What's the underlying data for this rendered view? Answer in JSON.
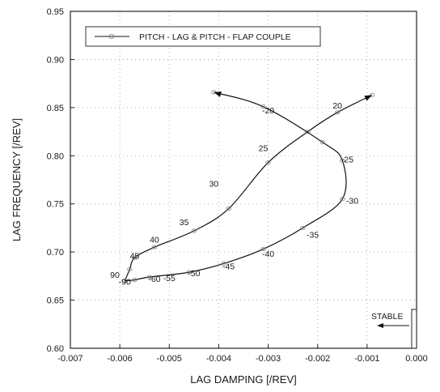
{
  "chart_data": {
    "type": "line",
    "xlabel": "LAG DAMPING [/REV]",
    "ylabel": "LAG FREQUENCY [/REV]",
    "xlim": [
      -0.007,
      0.0
    ],
    "ylim": [
      0.6,
      0.95
    ],
    "x_ticks": [
      "-0.007",
      "-0.006",
      "-0.005",
      "-0.004",
      "-0.003",
      "-0.002",
      "-0.001",
      "0.000"
    ],
    "y_ticks": [
      "0.60",
      "0.65",
      "0.70",
      "0.75",
      "0.80",
      "0.85",
      "0.90",
      "0.95"
    ],
    "grid": "dotted",
    "legend_position": "top-left",
    "series": [
      {
        "name": "PITCH - LAG  &  PITCH - FLAP COUPLE",
        "color": "#111111",
        "upper_branch": [
          {
            "x": -0.0059,
            "y": 0.67
          },
          {
            "x": -0.0058,
            "y": 0.682
          },
          {
            "x": -0.0057,
            "y": 0.694
          },
          {
            "x": -0.0053,
            "y": 0.705
          },
          {
            "x": -0.0045,
            "y": 0.722
          },
          {
            "x": -0.0038,
            "y": 0.745
          },
          {
            "x": -0.003,
            "y": 0.793
          },
          {
            "x": -0.0022,
            "y": 0.825
          },
          {
            "x": -0.0016,
            "y": 0.845
          },
          {
            "x": -0.0009,
            "y": 0.863
          }
        ],
        "lower_branch": [
          {
            "x": -0.0059,
            "y": 0.67
          },
          {
            "x": -0.0057,
            "y": 0.671
          },
          {
            "x": -0.0054,
            "y": 0.674
          },
          {
            "x": -0.0046,
            "y": 0.679
          },
          {
            "x": -0.0039,
            "y": 0.688
          },
          {
            "x": -0.0031,
            "y": 0.703
          },
          {
            "x": -0.0023,
            "y": 0.725
          },
          {
            "x": -0.0015,
            "y": 0.755
          },
          {
            "x": -0.0015,
            "y": 0.795
          },
          {
            "x": -0.0019,
            "y": 0.814
          },
          {
            "x": -0.0031,
            "y": 0.851
          },
          {
            "x": -0.0041,
            "y": 0.866
          }
        ]
      }
    ],
    "annotations": [
      {
        "text": "20",
        "x": -0.0016,
        "y": 0.849
      },
      {
        "text": "25",
        "x": -0.0031,
        "y": 0.805
      },
      {
        "text": "30",
        "x": -0.0041,
        "y": 0.768
      },
      {
        "text": "35",
        "x": -0.0047,
        "y": 0.728
      },
      {
        "text": "40",
        "x": -0.0053,
        "y": 0.71
      },
      {
        "text": "45",
        "x": -0.0057,
        "y": 0.693
      },
      {
        "text": "90",
        "x": -0.0061,
        "y": 0.673
      },
      {
        "text": "-20",
        "x": -0.003,
        "y": 0.844
      },
      {
        "text": "-25",
        "x": -0.0014,
        "y": 0.793
      },
      {
        "text": "-30",
        "x": -0.0013,
        "y": 0.75
      },
      {
        "text": "-35",
        "x": -0.0021,
        "y": 0.715
      },
      {
        "text": "-40",
        "x": -0.003,
        "y": 0.695
      },
      {
        "text": "-45",
        "x": -0.0038,
        "y": 0.682
      },
      {
        "text": "-50",
        "x": -0.0045,
        "y": 0.675
      },
      {
        "text": "-55",
        "x": -0.005,
        "y": 0.67
      },
      {
        "text": "-60",
        "x": -0.0053,
        "y": 0.669
      },
      {
        "text": "-90",
        "x": -0.0059,
        "y": 0.666
      }
    ],
    "stable_label": "STABLE"
  }
}
